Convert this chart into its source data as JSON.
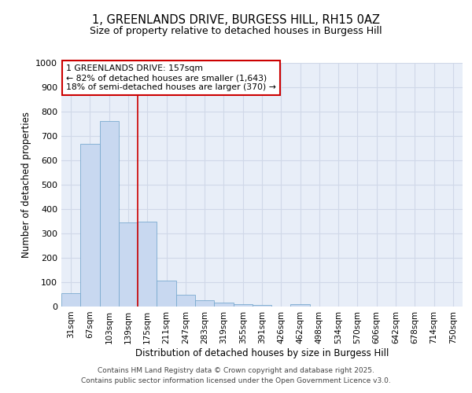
{
  "title1": "1, GREENLANDS DRIVE, BURGESS HILL, RH15 0AZ",
  "title2": "Size of property relative to detached houses in Burgess Hill",
  "xlabel": "Distribution of detached houses by size in Burgess Hill",
  "ylabel": "Number of detached properties",
  "bar_labels": [
    "31sqm",
    "67sqm",
    "103sqm",
    "139sqm",
    "175sqm",
    "211sqm",
    "247sqm",
    "283sqm",
    "319sqm",
    "355sqm",
    "391sqm",
    "426sqm",
    "462sqm",
    "498sqm",
    "534sqm",
    "570sqm",
    "606sqm",
    "642sqm",
    "678sqm",
    "714sqm",
    "750sqm"
  ],
  "bar_values": [
    55,
    667,
    760,
    345,
    347,
    107,
    50,
    27,
    17,
    10,
    5,
    1,
    10,
    0,
    0,
    0,
    0,
    0,
    0,
    0,
    0
  ],
  "bar_color": "#c8d8f0",
  "bar_edge_color": "#7aaad0",
  "vline_x": 3.5,
  "vline_color": "#cc0000",
  "annotation_line1": "1 GREENLANDS DRIVE: 157sqm",
  "annotation_line2": "← 82% of detached houses are smaller (1,643)",
  "annotation_line3": "18% of semi-detached houses are larger (370) →",
  "annotation_box_color": "#cc0000",
  "ylim": [
    0,
    1000
  ],
  "yticks": [
    0,
    100,
    200,
    300,
    400,
    500,
    600,
    700,
    800,
    900,
    1000
  ],
  "grid_color": "#d0d8e8",
  "bg_color": "#e8eef8",
  "footer1": "Contains HM Land Registry data © Crown copyright and database right 2025.",
  "footer2": "Contains public sector information licensed under the Open Government Licence v3.0."
}
